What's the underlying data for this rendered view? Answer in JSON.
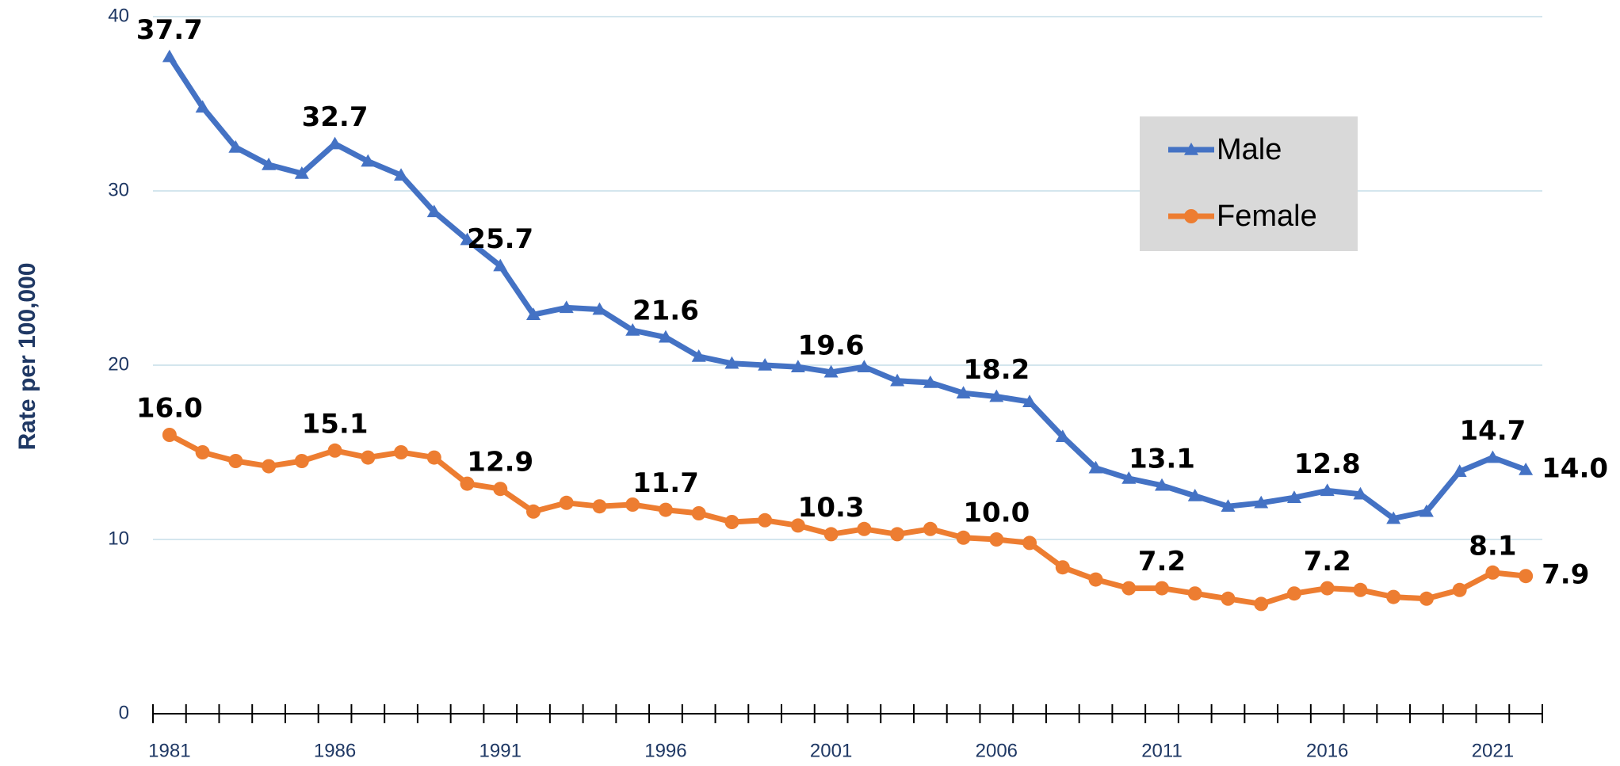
{
  "chart_data": {
    "type": "line",
    "y_label": "Rate per 100,000",
    "categories": [
      "1981",
      null,
      null,
      null,
      null,
      "1986",
      null,
      null,
      null,
      null,
      "1991",
      null,
      null,
      null,
      null,
      "1996",
      null,
      null,
      null,
      null,
      "2001",
      null,
      null,
      null,
      null,
      "2006",
      null,
      null,
      null,
      null,
      "2011",
      null,
      null,
      null,
      null,
      "2016",
      null,
      null,
      null,
      null,
      "2021",
      null
    ],
    "series": [
      {
        "name": "Male",
        "color": "#4472c4",
        "marker": "triangle",
        "values": [
          37.7,
          34.8,
          32.5,
          31.5,
          31.0,
          32.7,
          31.7,
          30.9,
          28.8,
          27.2,
          25.7,
          22.9,
          23.3,
          23.2,
          22.0,
          21.6,
          20.5,
          20.1,
          20.0,
          19.9,
          19.6,
          19.9,
          19.1,
          19.0,
          18.4,
          18.2,
          17.9,
          15.9,
          14.1,
          13.5,
          13.1,
          12.5,
          11.9,
          12.1,
          12.4,
          12.8,
          12.6,
          11.2,
          11.6,
          13.9,
          14.7,
          14.0
        ],
        "value_labels": [
          "37.7",
          null,
          null,
          null,
          null,
          "32.7",
          null,
          null,
          null,
          null,
          "25.7",
          null,
          null,
          null,
          null,
          "21.6",
          null,
          null,
          null,
          null,
          "19.6",
          null,
          null,
          null,
          null,
          "18.2",
          null,
          null,
          null,
          null,
          "13.1",
          null,
          null,
          null,
          null,
          "12.8",
          null,
          null,
          null,
          null,
          "14.7",
          "14.0"
        ]
      },
      {
        "name": "Female",
        "color": "#ed7d31",
        "marker": "circle",
        "values": [
          16.0,
          15.0,
          14.5,
          14.2,
          14.5,
          15.1,
          14.7,
          15.0,
          14.7,
          13.2,
          12.9,
          11.6,
          12.1,
          11.9,
          12.0,
          11.7,
          11.5,
          11.0,
          11.1,
          10.8,
          10.3,
          10.6,
          10.3,
          10.6,
          10.1,
          10.0,
          9.8,
          8.4,
          7.7,
          7.2,
          7.2,
          6.9,
          6.6,
          6.3,
          6.9,
          7.2,
          7.1,
          6.7,
          6.6,
          7.1,
          8.1,
          7.9
        ],
        "value_labels": [
          "16.0",
          null,
          null,
          null,
          null,
          "15.1",
          null,
          null,
          null,
          null,
          "12.9",
          null,
          null,
          null,
          null,
          "11.7",
          null,
          null,
          null,
          null,
          "10.3",
          null,
          null,
          null,
          null,
          "10.0",
          null,
          null,
          null,
          null,
          "7.2",
          null,
          null,
          null,
          null,
          "7.2",
          null,
          null,
          null,
          null,
          "8.1",
          "7.9"
        ]
      }
    ],
    "ylim": [
      0,
      40
    ],
    "yticks": [
      0,
      10,
      20,
      30,
      40
    ],
    "grid": true,
    "legend": "upper-right"
  }
}
